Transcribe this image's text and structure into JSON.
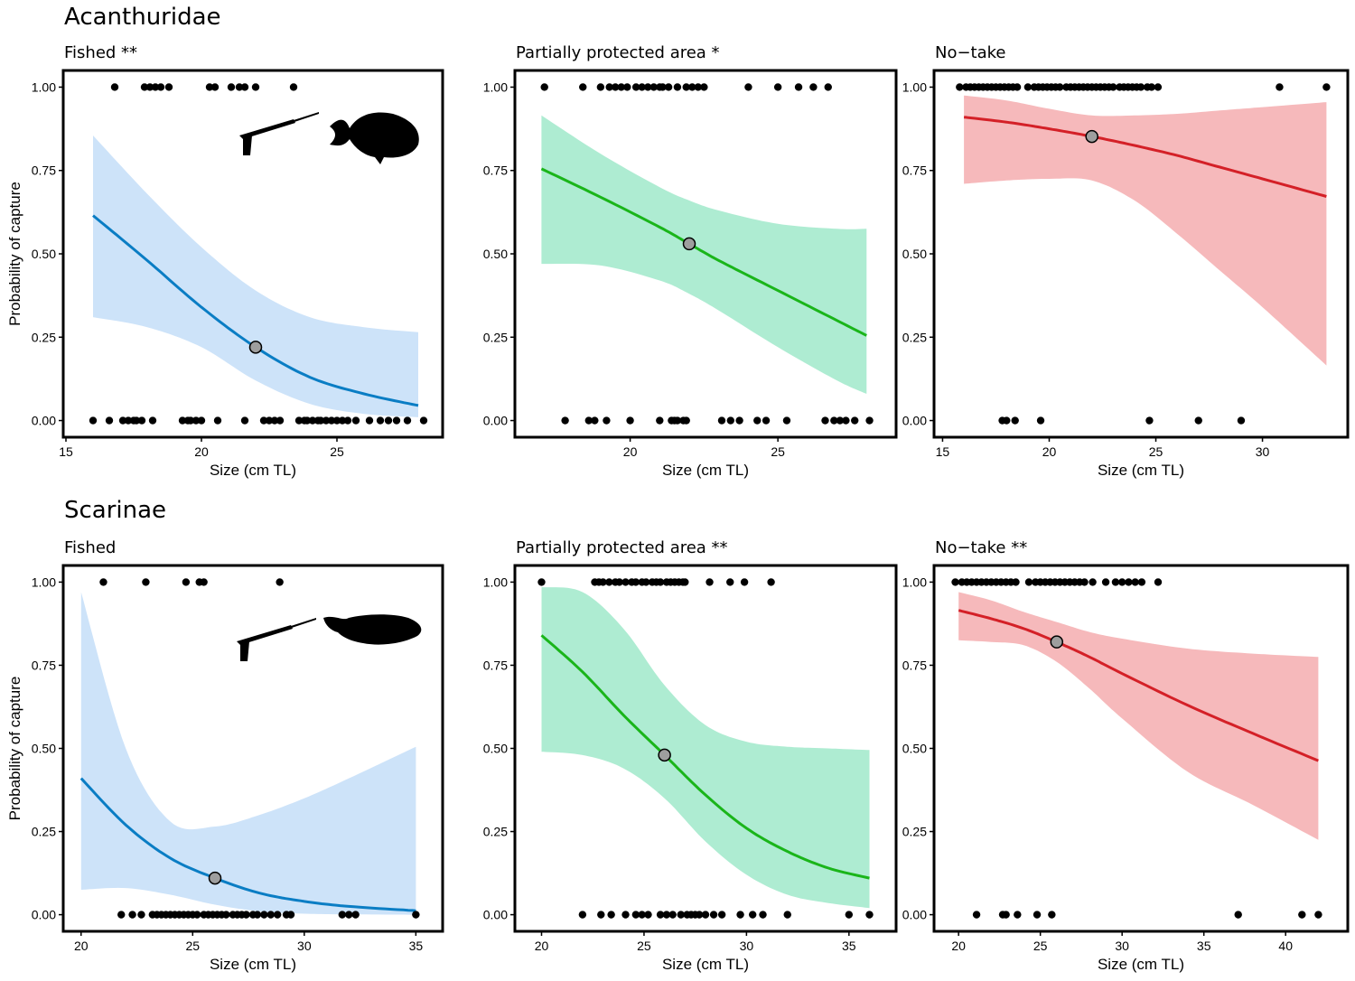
{
  "figure": {
    "groups": [
      {
        "title": "Acanthuridae"
      },
      {
        "title": "Scarinae"
      }
    ]
  },
  "chart_data": [
    {
      "type": "line",
      "group": "Acanthuridae",
      "title": "Fished **",
      "xlabel": "Size (cm TL)",
      "ylabel": "Probability of capture",
      "xlim": [
        14.9,
        28.9
      ],
      "ylim": [
        -0.05,
        1.05
      ],
      "xticks": [
        15,
        20,
        25
      ],
      "yticks": [
        0.0,
        0.25,
        0.5,
        0.75,
        1.0
      ],
      "ytick_labels": [
        "0.00",
        "0.25",
        "0.50",
        "0.75",
        "1.00"
      ],
      "color": "#0a7dc4",
      "band_color": "#cde3f9",
      "fit": {
        "x": [
          16,
          18,
          20,
          22,
          24,
          26,
          28
        ],
        "y": [
          0.615,
          0.48,
          0.34,
          0.22,
          0.13,
          0.08,
          0.045
        ]
      },
      "ci_lower": [
        0.31,
        0.28,
        0.22,
        0.12,
        0.05,
        0.02,
        0.01
      ],
      "ci_upper": [
        0.855,
        0.68,
        0.52,
        0.39,
        0.31,
        0.28,
        0.265
      ],
      "mean_point": {
        "x": 22,
        "y": 0.22
      },
      "captured_sizes": [
        16.8,
        17.9,
        18.1,
        18.3,
        18.5,
        18.8,
        20.3,
        20.5,
        21.1,
        21.4,
        21.6,
        22.0,
        23.4
      ],
      "not_captured_sizes": [
        16.0,
        16.6,
        17.1,
        17.3,
        17.5,
        17.6,
        17.8,
        18.2,
        19.3,
        19.5,
        19.6,
        19.8,
        20.0,
        20.6,
        21.6,
        22.3,
        22.5,
        22.7,
        22.9,
        23.6,
        23.8,
        23.9,
        24.1,
        24.3,
        24.4,
        24.6,
        24.8,
        25.0,
        25.2,
        25.4,
        25.7,
        26.2,
        26.6,
        26.9,
        27.2,
        27.6,
        28.2
      ],
      "icon": "spearfishing-surgeonfish"
    },
    {
      "type": "line",
      "group": "Acanthuridae",
      "title": "Partially protected area *",
      "xlabel": "Size (cm TL)",
      "ylabel": "",
      "xlim": [
        16.1,
        29.0
      ],
      "ylim": [
        -0.05,
        1.05
      ],
      "xticks": [
        20,
        25
      ],
      "yticks": [
        0.0,
        0.25,
        0.5,
        0.75,
        1.0
      ],
      "ytick_labels": [
        "0.00",
        "0.25",
        "0.50",
        "0.75",
        "1.00"
      ],
      "color": "#1ab51a",
      "band_color": "#aeecd2",
      "fit": {
        "x": [
          17,
          19,
          21,
          22,
          23,
          25,
          27,
          28
        ],
        "y": [
          0.755,
          0.67,
          0.58,
          0.53,
          0.48,
          0.39,
          0.3,
          0.255
        ]
      },
      "ci_lower": [
        0.47,
        0.465,
        0.42,
        0.38,
        0.33,
        0.22,
        0.12,
        0.08
      ],
      "ci_upper": [
        0.915,
        0.8,
        0.7,
        0.66,
        0.63,
        0.59,
        0.575,
        0.575
      ],
      "mean_point": {
        "x": 22,
        "y": 0.53
      },
      "captured_sizes": [
        17.1,
        18.4,
        19.0,
        19.3,
        19.5,
        19.7,
        19.9,
        20.2,
        20.4,
        20.6,
        20.8,
        21.0,
        21.1,
        21.3,
        21.6,
        21.9,
        22.1,
        22.3,
        22.5,
        24.0,
        25.0,
        25.7,
        26.2,
        26.7
      ],
      "not_captured_sizes": [
        17.8,
        18.6,
        18.8,
        19.2,
        20.0,
        21.0,
        21.4,
        21.5,
        21.6,
        21.8,
        21.9,
        23.1,
        23.4,
        23.7,
        24.3,
        24.6,
        25.3,
        26.6,
        26.9,
        27.1,
        27.3,
        27.6,
        28.1
      ]
    },
    {
      "type": "line",
      "group": "Acanthuridae",
      "title": "No−take",
      "xlabel": "Size (cm TL)",
      "ylabel": "",
      "xlim": [
        14.6,
        34.0
      ],
      "ylim": [
        -0.05,
        1.05
      ],
      "xticks": [
        15,
        20,
        25,
        30
      ],
      "yticks": [
        0.0,
        0.25,
        0.5,
        0.75,
        1.0
      ],
      "ytick_labels": [
        "0.00",
        "0.25",
        "0.50",
        "0.75",
        "1.00"
      ],
      "color": "#d42027",
      "band_color": "#f6b9bb",
      "fit": {
        "x": [
          16,
          18,
          20,
          22,
          24,
          26,
          28,
          30,
          33
        ],
        "y": [
          0.91,
          0.895,
          0.875,
          0.852,
          0.825,
          0.795,
          0.76,
          0.725,
          0.672
        ]
      },
      "ci_lower": [
        0.71,
        0.72,
        0.725,
        0.72,
        0.66,
        0.56,
        0.45,
        0.34,
        0.165
      ],
      "ci_upper": [
        0.975,
        0.96,
        0.935,
        0.915,
        0.915,
        0.92,
        0.93,
        0.94,
        0.955
      ],
      "mean_point": {
        "x": 22,
        "y": 0.852
      },
      "captured_sizes": [
        15.8,
        16.1,
        16.3,
        16.5,
        16.7,
        16.9,
        17.1,
        17.3,
        17.5,
        17.7,
        17.9,
        18.1,
        18.3,
        18.5,
        19.0,
        19.3,
        19.5,
        19.7,
        19.9,
        20.1,
        20.3,
        20.5,
        20.8,
        21.0,
        21.2,
        21.4,
        21.6,
        21.8,
        22.0,
        22.2,
        22.4,
        22.6,
        22.8,
        23.0,
        23.3,
        23.5,
        23.7,
        23.9,
        24.1,
        24.3,
        24.6,
        24.8,
        25.1,
        30.8,
        33.0
      ],
      "not_captured_sizes": [
        17.8,
        18.0,
        18.4,
        19.6,
        24.7,
        27.0,
        29.0
      ]
    },
    {
      "type": "line",
      "group": "Scarinae",
      "title": "Fished",
      "xlabel": "Size (cm TL)",
      "ylabel": "Probability of capture",
      "xlim": [
        19.2,
        36.2
      ],
      "ylim": [
        -0.05,
        1.05
      ],
      "xticks": [
        20,
        25,
        30,
        35
      ],
      "yticks": [
        0.0,
        0.25,
        0.5,
        0.75,
        1.0
      ],
      "ytick_labels": [
        "0.00",
        "0.25",
        "0.50",
        "0.75",
        "1.00"
      ],
      "color": "#0a7dc4",
      "band_color": "#cde3f9",
      "fit": {
        "x": [
          20,
          22,
          24,
          26,
          28,
          30,
          32,
          35
        ],
        "y": [
          0.41,
          0.27,
          0.17,
          0.11,
          0.065,
          0.04,
          0.025,
          0.012
        ]
      },
      "ci_lower": [
        0.075,
        0.08,
        0.06,
        0.03,
        0.01,
        0.003,
        0.001,
        0.0
      ],
      "ci_upper": [
        0.97,
        0.5,
        0.28,
        0.265,
        0.3,
        0.35,
        0.41,
        0.505
      ],
      "mean_point": {
        "x": 26,
        "y": 0.11
      },
      "captured_sizes": [
        21.0,
        22.9,
        24.7,
        25.3,
        25.5,
        28.9
      ],
      "not_captured_sizes": [
        21.8,
        22.3,
        22.7,
        23.2,
        23.4,
        23.6,
        23.8,
        24.0,
        24.2,
        24.4,
        24.6,
        24.8,
        25.0,
        25.2,
        25.5,
        25.7,
        25.9,
        26.1,
        26.3,
        26.5,
        26.8,
        27.0,
        27.2,
        27.4,
        27.7,
        27.9,
        28.2,
        28.5,
        28.8,
        29.2,
        29.4,
        31.7,
        32.0,
        32.3,
        35.0
      ],
      "icon": "spearfishing-parrotfish"
    },
    {
      "type": "line",
      "group": "Scarinae",
      "title": "Partially protected area **",
      "xlabel": "Size (cm TL)",
      "ylabel": "",
      "xlim": [
        18.7,
        37.3
      ],
      "ylim": [
        -0.05,
        1.05
      ],
      "xticks": [
        20,
        25,
        30,
        35
      ],
      "yticks": [
        0.0,
        0.25,
        0.5,
        0.75,
        1.0
      ],
      "ytick_labels": [
        "0.00",
        "0.25",
        "0.50",
        "0.75",
        "1.00"
      ],
      "color": "#1ab51a",
      "band_color": "#aeecd2",
      "fit": {
        "x": [
          20,
          22,
          24,
          26,
          28,
          30,
          32,
          34,
          36
        ],
        "y": [
          0.84,
          0.73,
          0.6,
          0.48,
          0.36,
          0.26,
          0.19,
          0.14,
          0.11
        ]
      },
      "ci_lower": [
        0.49,
        0.48,
        0.44,
        0.35,
        0.22,
        0.12,
        0.06,
        0.035,
        0.02
      ],
      "ci_upper": [
        0.985,
        0.97,
        0.86,
        0.69,
        0.57,
        0.52,
        0.505,
        0.5,
        0.495
      ],
      "mean_point": {
        "x": 26,
        "y": 0.48
      },
      "captured_sizes": [
        20.0,
        22.6,
        22.8,
        23.0,
        23.3,
        23.6,
        23.8,
        24.1,
        24.4,
        24.6,
        24.9,
        25.1,
        25.4,
        25.6,
        25.8,
        26.1,
        26.3,
        26.5,
        26.7,
        26.9,
        27.0,
        28.2,
        29.2,
        29.9,
        31.2
      ],
      "not_captured_sizes": [
        22.0,
        22.9,
        23.4,
        24.1,
        24.6,
        24.9,
        25.2,
        25.8,
        26.1,
        26.4,
        26.8,
        27.1,
        27.3,
        27.5,
        27.7,
        28.0,
        28.4,
        28.8,
        29.7,
        30.3,
        30.8,
        32.0,
        35.0,
        36.0
      ]
    },
    {
      "type": "line",
      "group": "Scarinae",
      "title": "No−take **",
      "xlabel": "Size (cm TL)",
      "ylabel": "",
      "xlim": [
        18.5,
        43.8
      ],
      "ylim": [
        -0.05,
        1.05
      ],
      "xticks": [
        20,
        25,
        30,
        35,
        40
      ],
      "yticks": [
        0.0,
        0.25,
        0.5,
        0.75,
        1.0
      ],
      "ytick_labels": [
        "0.00",
        "0.25",
        "0.50",
        "0.75",
        "1.00"
      ],
      "color": "#d42027",
      "band_color": "#f6b9bb",
      "fit": {
        "x": [
          20,
          22,
          24,
          26,
          28,
          30,
          34,
          38,
          42
        ],
        "y": [
          0.915,
          0.89,
          0.86,
          0.82,
          0.775,
          0.725,
          0.63,
          0.545,
          0.463
        ]
      },
      "ci_lower": [
        0.825,
        0.82,
        0.81,
        0.76,
        0.68,
        0.59,
        0.43,
        0.33,
        0.225
      ],
      "ci_upper": [
        0.97,
        0.945,
        0.91,
        0.88,
        0.85,
        0.83,
        0.8,
        0.785,
        0.775
      ],
      "mean_point": {
        "x": 26,
        "y": 0.82
      },
      "captured_sizes": [
        19.8,
        20.2,
        20.5,
        20.8,
        21.1,
        21.4,
        21.7,
        22.0,
        22.3,
        22.6,
        22.9,
        23.2,
        23.5,
        24.3,
        24.7,
        25.0,
        25.3,
        25.6,
        25.9,
        26.2,
        26.5,
        26.8,
        27.1,
        27.4,
        27.7,
        28.2,
        29.0,
        29.6,
        30.0,
        30.4,
        30.8,
        31.2,
        32.2
      ],
      "not_captured_sizes": [
        21.1,
        22.7,
        22.9,
        23.6,
        24.8,
        25.7,
        37.1,
        41.0,
        42.0
      ]
    }
  ]
}
